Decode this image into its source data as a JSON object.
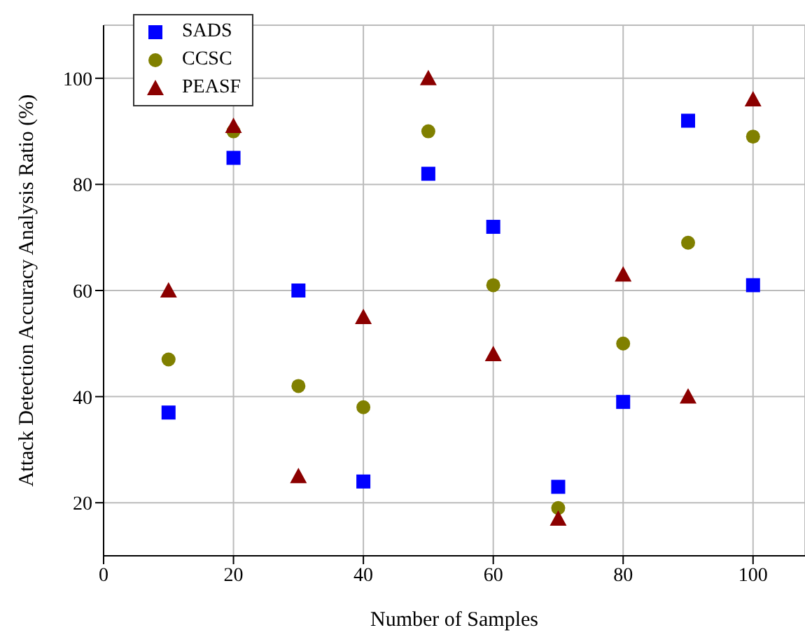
{
  "chart_data": {
    "type": "scatter",
    "xlabel": "Number of Samples",
    "ylabel": "Attack Detection Accuracy Analysis Ratio (%)",
    "x": [
      10,
      20,
      30,
      40,
      50,
      60,
      70,
      80,
      90,
      100
    ],
    "series": [
      {
        "name": "SADS",
        "color": "#0000ff",
        "marker": "square",
        "values": [
          37,
          85,
          60,
          24,
          82,
          72,
          23,
          39,
          92,
          61
        ]
      },
      {
        "name": "CCSC",
        "color": "#808000",
        "marker": "circle",
        "values": [
          47,
          90,
          42,
          38,
          90,
          61,
          19,
          50,
          69,
          89
        ]
      },
      {
        "name": "PEASF",
        "color": "#8b0000",
        "marker": "triangle",
        "values": [
          60,
          91,
          25,
          55,
          100,
          48,
          17,
          63,
          40,
          96
        ]
      }
    ],
    "xlim": [
      0,
      108
    ],
    "xticks": [
      0,
      20,
      40,
      60,
      80,
      100
    ],
    "ylim": [
      10,
      110
    ],
    "yticks": [
      20,
      40,
      60,
      80,
      100
    ],
    "grid": true,
    "legend": "top left"
  }
}
